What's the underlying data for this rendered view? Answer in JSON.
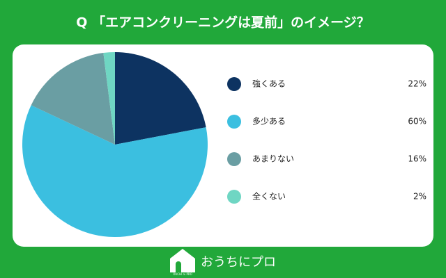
{
  "chart_data": {
    "type": "pie",
    "title": "Q 「エアコンクリーニングは夏前」のイメージ？",
    "categories": [
      "強くある",
      "多少ある",
      "あまりない",
      "全くない"
    ],
    "values": [
      22,
      60,
      16,
      2
    ],
    "value_labels": [
      "22%",
      "60%",
      "16%",
      "2%"
    ],
    "colors": [
      "#0d3361",
      "#3bbfe0",
      "#6a9ea3",
      "#6fd6c3"
    ]
  },
  "footer": {
    "logo_text": "おうちにプロ",
    "logo_small": "OUCHI ni PRO"
  }
}
